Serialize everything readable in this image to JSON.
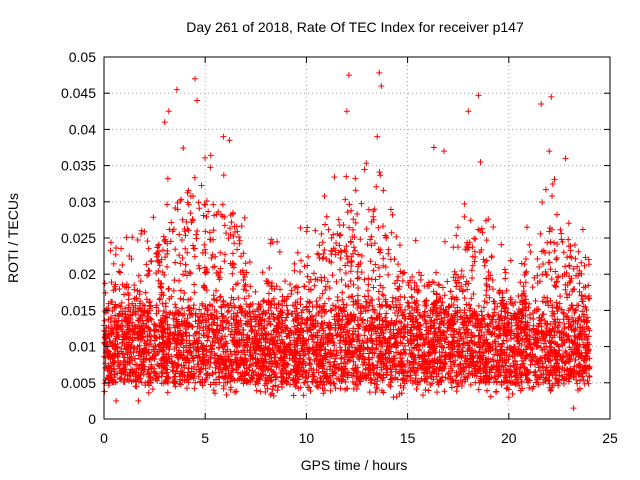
{
  "chart_data": {
    "type": "scatter",
    "title": "Day 261 of 2018, Rate Of TEC Index for receiver p147",
    "xlabel": "GPS time / hours",
    "ylabel": "ROTI / TECUs",
    "xlim": [
      0,
      25
    ],
    "ylim": [
      0,
      0.05
    ],
    "xticks": [
      0,
      5,
      10,
      15,
      20,
      25
    ],
    "yticks": [
      0,
      0.005,
      0.01,
      0.015,
      0.02,
      0.025,
      0.03,
      0.035,
      0.04,
      0.045,
      0.05
    ],
    "xtick_labels": [
      "0",
      "5",
      "10",
      "15",
      "20",
      "25"
    ],
    "ytick_labels": [
      "0",
      "0.005",
      "0.01",
      "0.015",
      "0.02",
      "0.025",
      "0.03",
      "0.035",
      "0.04",
      "0.045",
      "0.05"
    ],
    "grid": true,
    "marker": "+",
    "series": [
      {
        "name": "ROTI",
        "color": "#ff0000",
        "x_range": [
          0,
          24
        ],
        "typical_range": [
          0.005,
          0.015
        ],
        "notable_points": [
          {
            "x": 3.0,
            "y": 0.041
          },
          {
            "x": 3.2,
            "y": 0.0425
          },
          {
            "x": 3.6,
            "y": 0.0455
          },
          {
            "x": 4.5,
            "y": 0.047
          },
          {
            "x": 4.6,
            "y": 0.044
          },
          {
            "x": 5.9,
            "y": 0.039
          },
          {
            "x": 6.2,
            "y": 0.0385
          },
          {
            "x": 12.1,
            "y": 0.0475
          },
          {
            "x": 12.0,
            "y": 0.0425
          },
          {
            "x": 13.6,
            "y": 0.0478
          },
          {
            "x": 13.7,
            "y": 0.046
          },
          {
            "x": 13.5,
            "y": 0.039
          },
          {
            "x": 16.3,
            "y": 0.0375
          },
          {
            "x": 16.8,
            "y": 0.037
          },
          {
            "x": 18.0,
            "y": 0.0425
          },
          {
            "x": 18.5,
            "y": 0.0447
          },
          {
            "x": 18.6,
            "y": 0.0355
          },
          {
            "x": 21.6,
            "y": 0.0435
          },
          {
            "x": 22.1,
            "y": 0.0445
          },
          {
            "x": 22.0,
            "y": 0.037
          },
          {
            "x": 22.8,
            "y": 0.036
          },
          {
            "x": 0.6,
            "y": 0.0025
          },
          {
            "x": 1.7,
            "y": 0.0025
          },
          {
            "x": 14.3,
            "y": 0.003
          },
          {
            "x": 23.2,
            "y": 0.0015
          },
          {
            "x": 20.0,
            "y": 0.003
          }
        ]
      }
    ]
  }
}
